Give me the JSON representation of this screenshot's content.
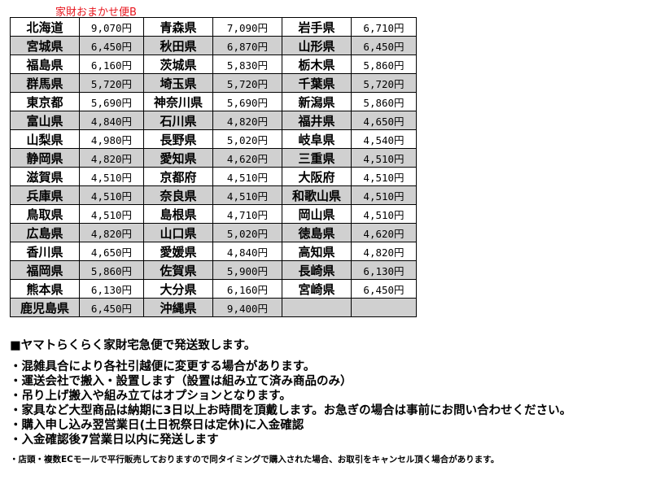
{
  "caption": "家財おまかせ便B",
  "rows": [
    [
      [
        "北海道",
        "9,070円"
      ],
      [
        "青森県",
        "7,090円"
      ],
      [
        "岩手県",
        "6,710円"
      ]
    ],
    [
      [
        "宮城県",
        "6,450円"
      ],
      [
        "秋田県",
        "6,870円"
      ],
      [
        "山形県",
        "6,450円"
      ]
    ],
    [
      [
        "福島県",
        "6,160円"
      ],
      [
        "茨城県",
        "5,830円"
      ],
      [
        "栃木県",
        "5,860円"
      ]
    ],
    [
      [
        "群馬県",
        "5,720円"
      ],
      [
        "埼玉県",
        "5,720円"
      ],
      [
        "千葉県",
        "5,720円"
      ]
    ],
    [
      [
        "東京都",
        "5,690円"
      ],
      [
        "神奈川県",
        "5,690円"
      ],
      [
        "新潟県",
        "5,860円"
      ]
    ],
    [
      [
        "富山県",
        "4,840円"
      ],
      [
        "石川県",
        "4,820円"
      ],
      [
        "福井県",
        "4,650円"
      ]
    ],
    [
      [
        "山梨県",
        "4,980円"
      ],
      [
        "長野県",
        "5,020円"
      ],
      [
        "岐阜県",
        "4,540円"
      ]
    ],
    [
      [
        "静岡県",
        "4,820円"
      ],
      [
        "愛知県",
        "4,620円"
      ],
      [
        "三重県",
        "4,510円"
      ]
    ],
    [
      [
        "滋賀県",
        "4,510円"
      ],
      [
        "京都府",
        "4,510円"
      ],
      [
        "大阪府",
        "4,510円"
      ]
    ],
    [
      [
        "兵庫県",
        "4,510円"
      ],
      [
        "奈良県",
        "4,510円"
      ],
      [
        "和歌山県",
        "4,510円"
      ]
    ],
    [
      [
        "鳥取県",
        "4,510円"
      ],
      [
        "島根県",
        "4,710円"
      ],
      [
        "岡山県",
        "4,510円"
      ]
    ],
    [
      [
        "広島県",
        "4,820円"
      ],
      [
        "山口県",
        "5,020円"
      ],
      [
        "徳島県",
        "4,620円"
      ]
    ],
    [
      [
        "香川県",
        "4,650円"
      ],
      [
        "愛媛県",
        "4,840円"
      ],
      [
        "高知県",
        "4,820円"
      ]
    ],
    [
      [
        "福岡県",
        "5,860円"
      ],
      [
        "佐賀県",
        "5,900円"
      ],
      [
        "長崎県",
        "6,130円"
      ]
    ],
    [
      [
        "熊本県",
        "6,130円"
      ],
      [
        "大分県",
        "6,160円"
      ],
      [
        "宮崎県",
        "6,450円"
      ]
    ],
    [
      [
        "鹿児島県",
        "6,450円"
      ],
      [
        "沖縄県",
        "9,400円"
      ],
      [
        "",
        ""
      ]
    ]
  ],
  "notes": {
    "heading": "■ヤマトらくらく家財宅急便で発送致します。",
    "lines": [
      "・混雑具合により各社引越便に変更する場合があります。",
      "・運送会社で搬入・設置します（設置は組み立て済み商品のみ）",
      "・吊り上げ搬入や組み立てはオプションとなります。",
      "・家具など大型商品は納期に3日以上お時間を頂戴します。お急ぎの場合は事前にお問い合わせください。",
      "・購入申し込み翌営業日(土日祝祭日は定休)に入金確認",
      "・入金確認後7営業日以内に発送します"
    ],
    "footnote": "・店頭・複数ECモールで平行販売しておりますので同タイミングで購入された場合、お取引をキャンセル頂く場合があります。"
  }
}
